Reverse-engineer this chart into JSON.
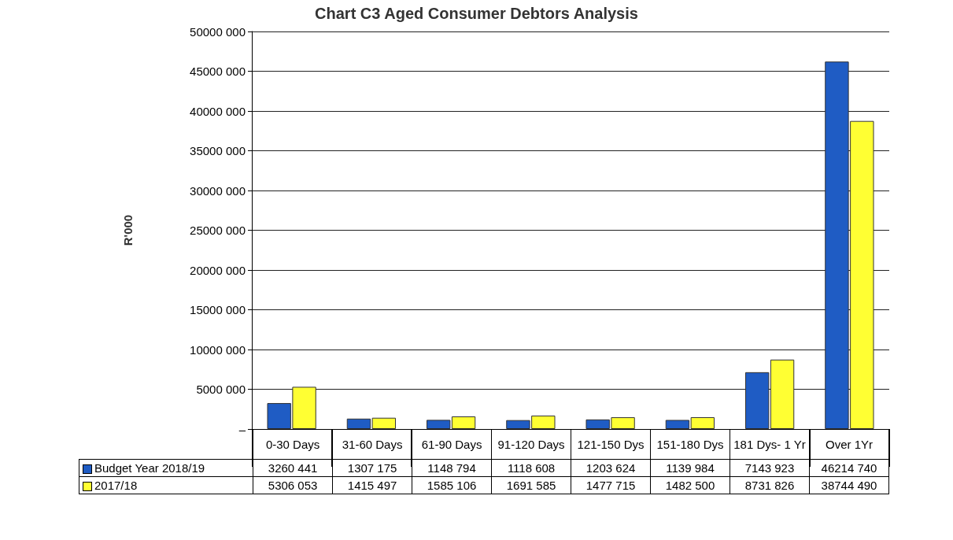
{
  "chart_data": {
    "type": "bar",
    "title": "Chart C3 Aged Consumer Debtors Analysis",
    "ylabel": "R'000",
    "categories": [
      "0-30 Days",
      "31-60 Days",
      "61-90 Days",
      "91-120 Days",
      "121-150 Dys",
      "151-180 Dys",
      "181 Dys- 1 Yr",
      "Over 1Yr"
    ],
    "series": [
      {
        "name": "Budget Year 2018/19",
        "color": "#1f5cc4",
        "values": [
          3260441,
          1307175,
          1148794,
          1118608,
          1203624,
          1139984,
          7143923,
          46214740
        ],
        "value_labels": [
          "3260 441",
          "1307 175",
          "1148 794",
          "1118 608",
          "1203 624",
          "1139 984",
          "7143 923",
          "46214 740"
        ]
      },
      {
        "name": "2017/18",
        "color": "#ffff33",
        "values": [
          5306053,
          1415497,
          1585106,
          1691585,
          1477715,
          1482500,
          8731826,
          38744490
        ],
        "value_labels": [
          "5306 053",
          "1415 497",
          "1585 106",
          "1691 585",
          "1477 715",
          "1482 500",
          "8731 826",
          "38744 490"
        ]
      }
    ],
    "ylim": [
      0,
      50000000
    ],
    "yticks": [
      {
        "value": 0,
        "label": "–"
      },
      {
        "value": 5000000,
        "label": "5000 000"
      },
      {
        "value": 10000000,
        "label": "10000 000"
      },
      {
        "value": 15000000,
        "label": "15000 000"
      },
      {
        "value": 20000000,
        "label": "20000 000"
      },
      {
        "value": 25000000,
        "label": "25000 000"
      },
      {
        "value": 30000000,
        "label": "30000 000"
      },
      {
        "value": 35000000,
        "label": "35000 000"
      },
      {
        "value": 40000000,
        "label": "40000 000"
      },
      {
        "value": 45000000,
        "label": "45000 000"
      },
      {
        "value": 50000000,
        "label": "50000 000"
      }
    ],
    "grid": "y",
    "legend": "bottom"
  }
}
